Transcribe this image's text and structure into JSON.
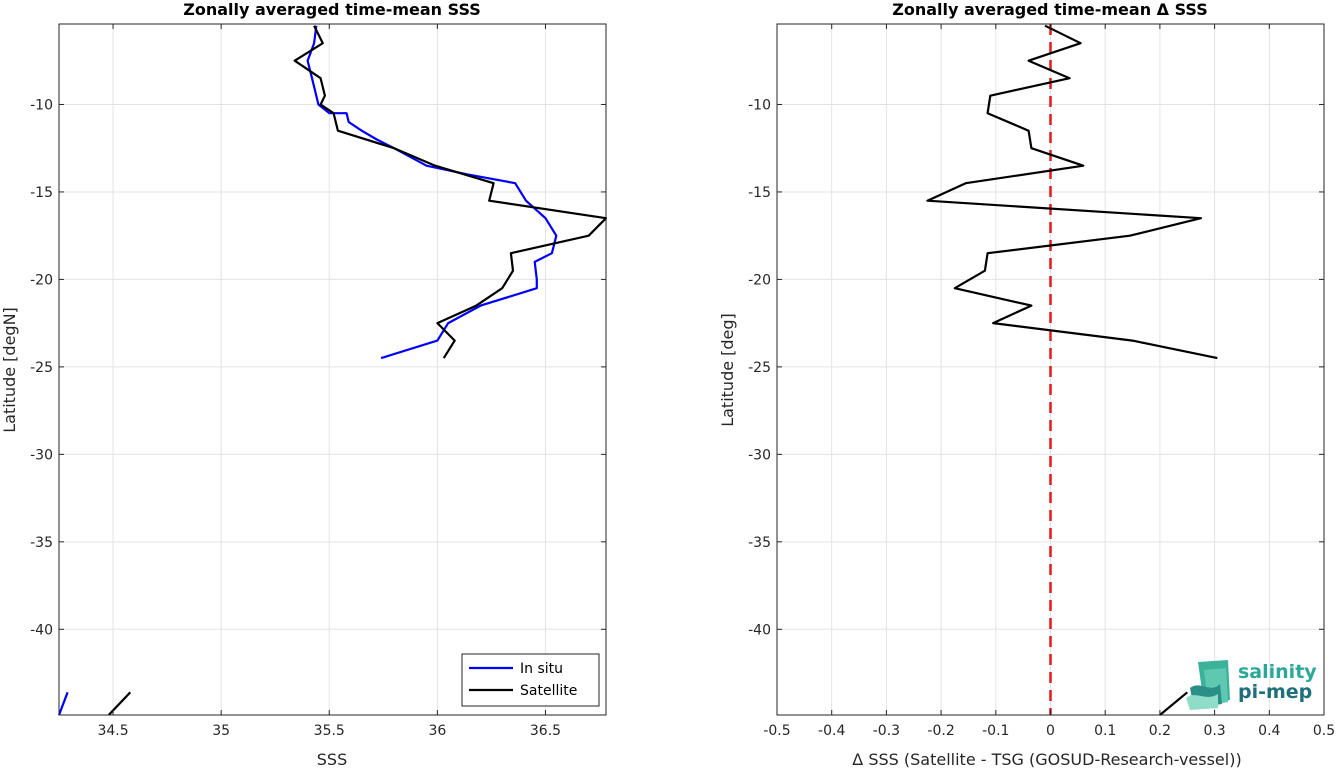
{
  "chart_data": [
    {
      "type": "line",
      "title": "Zonally averaged time-mean SSS",
      "xlabel": "SSS",
      "ylabel": "Latitude [degN]",
      "xlim": [
        34.25,
        36.78
      ],
      "ylim": [
        -44.9,
        -5.4
      ],
      "xticks": [
        34.5,
        35,
        35.5,
        36,
        36.5
      ],
      "yticks": [
        -10,
        -15,
        -20,
        -25,
        -30,
        -35,
        -40
      ],
      "grid": true,
      "legend": "bottom-right",
      "series": [
        {
          "name": "In situ",
          "color": "#0000ff",
          "x": [
            35.44,
            35.43,
            35.4,
            35.42,
            35.44,
            35.45,
            35.5,
            35.58,
            35.59,
            35.65,
            35.72,
            35.8,
            35.95,
            36.14,
            36.36,
            36.41,
            36.5,
            36.55,
            36.53,
            36.45,
            36.46,
            36.46,
            36.2,
            36.05,
            36.0,
            35.74
          ],
          "y": [
            -5.5,
            -6.5,
            -7.5,
            -8.5,
            -9.5,
            -10,
            -10.5,
            -10.5,
            -11,
            -11.5,
            -12,
            -12.5,
            -13.5,
            -14,
            -14.5,
            -15.5,
            -16.5,
            -17.5,
            -18.5,
            -19,
            -20,
            -20.5,
            -21.5,
            -22.5,
            -23.5,
            -24.5
          ],
          "tail": {
            "x": [
              34.25,
              34.29
            ],
            "y": [
              -44.9,
              -43.6
            ]
          }
        },
        {
          "name": "Satellite",
          "color": "#000000",
          "x": [
            35.43,
            35.47,
            35.34,
            35.46,
            35.48,
            35.46,
            35.52,
            35.54,
            35.8,
            35.99,
            36.26,
            36.24,
            36.78,
            36.7,
            36.34,
            36.35,
            36.3,
            36.18,
            36.0,
            36.08,
            36.03
          ],
          "y": [
            -5.5,
            -6.5,
            -7.5,
            -8.5,
            -9.5,
            -10,
            -10.5,
            -11.5,
            -12.5,
            -13.5,
            -14.5,
            -15.5,
            -16.5,
            -17.5,
            -18.5,
            -19.5,
            -20.5,
            -21.5,
            -22.5,
            -23.5,
            -24.5
          ],
          "tail": {
            "x": [
              34.48,
              34.58
            ],
            "y": [
              -44.9,
              -43.6
            ]
          }
        }
      ]
    },
    {
      "type": "line",
      "title": "Zonally averaged time-mean Δ SSS",
      "xlabel": "Δ SSS (Satellite - TSG (GOSUD-Research-vessel))",
      "ylabel": "Latitude [deg]",
      "xlim": [
        -0.5,
        0.5
      ],
      "ylim": [
        -44.9,
        -5.4
      ],
      "xticks": [
        -0.5,
        -0.4,
        -0.3,
        -0.2,
        -0.1,
        0,
        0.1,
        0.2,
        0.3,
        0.4,
        0.5
      ],
      "yticks": [
        -10,
        -15,
        -20,
        -25,
        -30,
        -35,
        -40
      ],
      "grid": true,
      "reference_line": {
        "x": 0,
        "color": "#e41a1c",
        "style": "dashed"
      },
      "series": [
        {
          "color": "#000000",
          "x": [
            -0.01,
            0.055,
            -0.04,
            0.035,
            -0.11,
            -0.115,
            -0.04,
            -0.035,
            0.06,
            -0.155,
            -0.225,
            0.275,
            0.145,
            -0.115,
            -0.12,
            -0.175,
            -0.035,
            -0.105,
            0.15,
            0.305
          ],
          "y": [
            -5.5,
            -6.5,
            -7.5,
            -8.5,
            -9.5,
            -10.5,
            -11.5,
            -12.5,
            -13.5,
            -14.5,
            -15.5,
            -16.5,
            -17.5,
            -18.5,
            -19.5,
            -20.5,
            -21.5,
            -22.5,
            -23.5,
            -24.5
          ],
          "tail": {
            "x": [
              0.2,
              0.25
            ],
            "y": [
              -44.9,
              -43.6
            ]
          }
        }
      ]
    }
  ],
  "logo": {
    "line1": "salinity",
    "line2": "pi-mep"
  }
}
